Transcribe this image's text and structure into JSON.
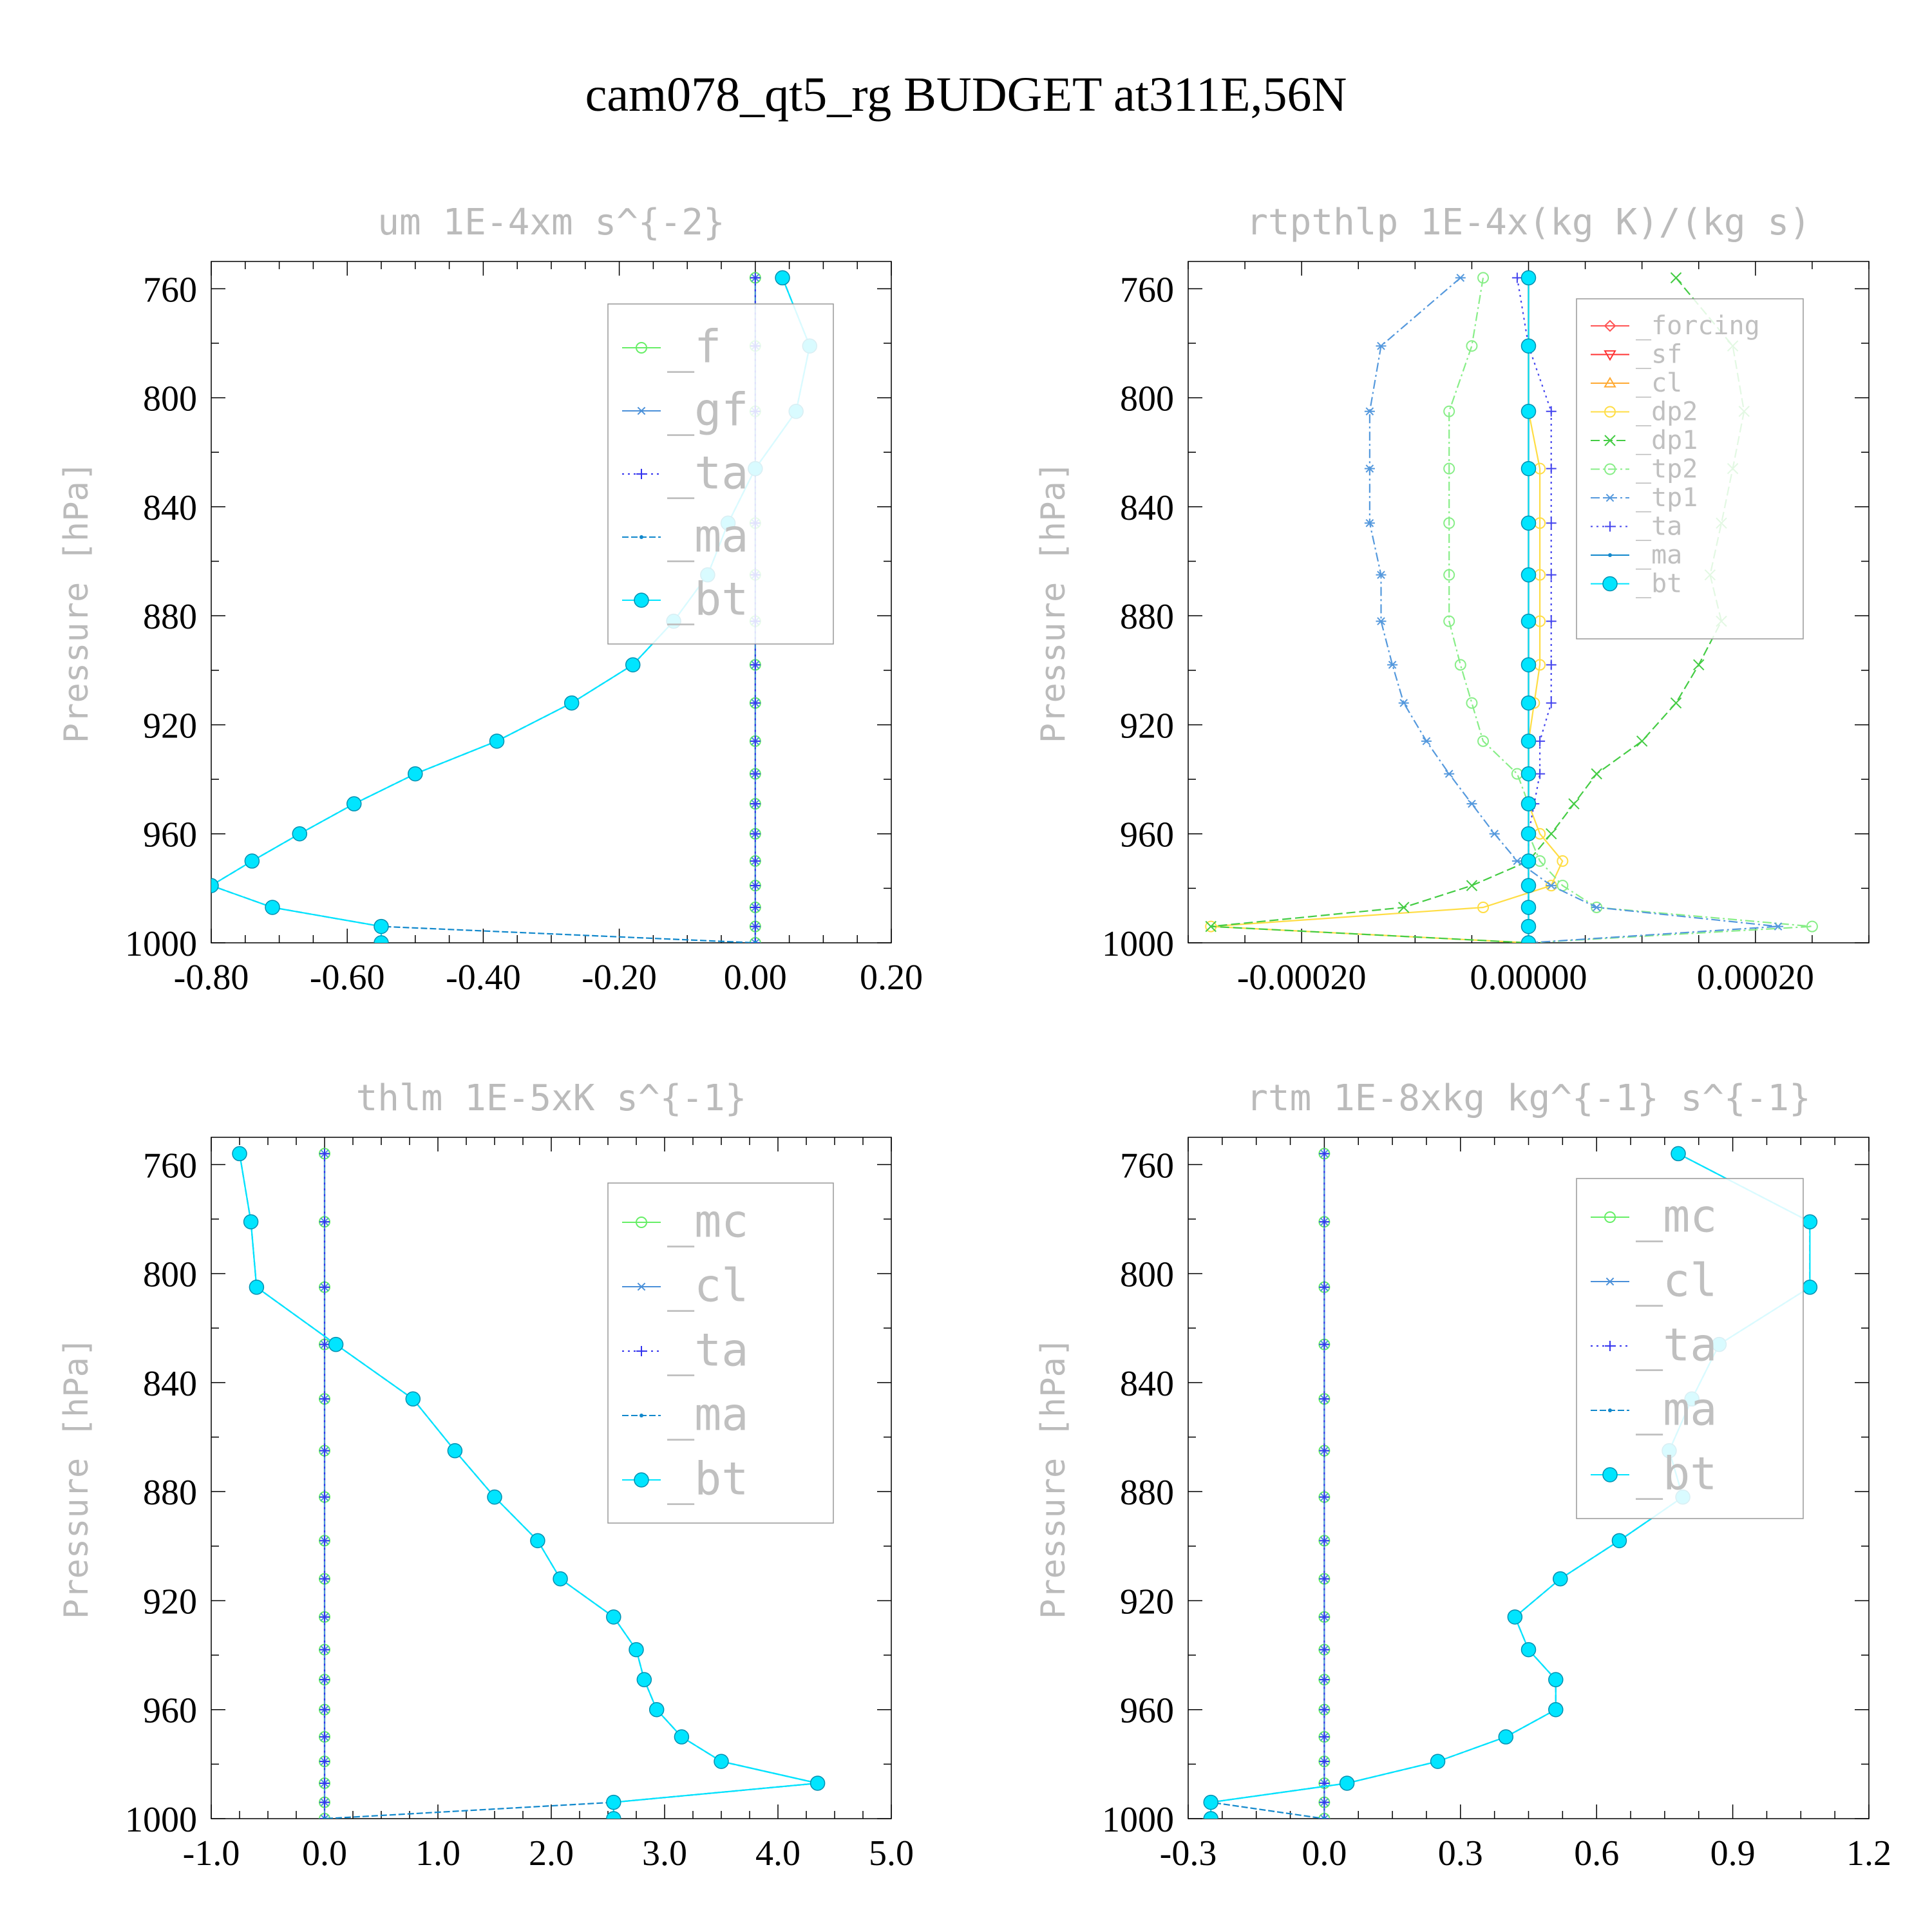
{
  "title": "cam078_qt5_rg  BUDGET at311E,56N",
  "chart_data": [
    {
      "type": "line",
      "title": "um  1E-4xm s^{-2}",
      "ylabel": "Pressure [hPa]",
      "xlabel": "",
      "xlim": [
        -0.8,
        0.2
      ],
      "ylim": [
        1000,
        750
      ],
      "xticks": [
        "-0.80",
        "-0.60",
        "-0.40",
        "-0.20",
        "0.00",
        "0.20"
      ],
      "yticks": [
        "760",
        "800",
        "840",
        "880",
        "920",
        "960",
        "1000"
      ],
      "grid": false,
      "legend_position": "top-right",
      "pressure": [
        756,
        781,
        805,
        826,
        846,
        865,
        882,
        898,
        912,
        926,
        938,
        949,
        960,
        970,
        979,
        987,
        994,
        1000
      ],
      "series": [
        {
          "name": "_f",
          "color": "#66ee66",
          "marker": "circle-open",
          "dash": "",
          "values": [
            0,
            0,
            0,
            0,
            0,
            0,
            0,
            0,
            0,
            0,
            0,
            0,
            0,
            0,
            0,
            0,
            0,
            0
          ]
        },
        {
          "name": "_gf",
          "color": "#4a90d9",
          "marker": "star",
          "dash": "",
          "values": [
            0,
            0,
            0,
            0,
            0,
            0,
            0,
            0,
            0,
            0,
            0,
            0,
            0,
            0,
            0,
            0,
            0,
            0
          ]
        },
        {
          "name": "_ta",
          "color": "#3333ee",
          "marker": "plus",
          "dash": "3,6",
          "values": [
            0,
            0,
            0,
            0,
            0,
            0,
            0,
            0,
            0,
            0,
            0,
            0,
            0,
            0,
            0,
            0,
            0,
            0
          ]
        },
        {
          "name": "_ma",
          "color": "#1188cc",
          "marker": "dot",
          "dash": "10,4",
          "values": [
            0.04,
            0.08,
            0.06,
            0.0,
            -0.04,
            -0.07,
            -0.12,
            -0.18,
            -0.27,
            -0.38,
            -0.5,
            -0.59,
            -0.67,
            -0.74,
            -0.8,
            -0.71,
            -0.55,
            0
          ]
        },
        {
          "name": "_bt",
          "color": "#00e5ff",
          "marker": "filled",
          "dash": "",
          "values": [
            0.04,
            0.08,
            0.06,
            0.0,
            -0.04,
            -0.07,
            -0.12,
            -0.18,
            -0.27,
            -0.38,
            -0.5,
            -0.59,
            -0.67,
            -0.74,
            -0.8,
            -0.71,
            -0.55,
            -0.55
          ]
        }
      ]
    },
    {
      "type": "line",
      "title": "rtpthlp  1E-4x(kg K)/(kg s)",
      "ylabel": "Pressure [hPa]",
      "xlabel": "",
      "xlim": [
        -0.0003,
        0.0003
      ],
      "ylim": [
        1000,
        750
      ],
      "xticks": [
        "-0.00020",
        "0.00000",
        "0.00020"
      ],
      "yticks": [
        "760",
        "800",
        "840",
        "880",
        "920",
        "960",
        "1000"
      ],
      "grid": false,
      "legend_position": "top-right",
      "pressure": [
        756,
        781,
        805,
        826,
        846,
        865,
        882,
        898,
        912,
        926,
        938,
        949,
        960,
        970,
        979,
        987,
        994,
        1000
      ],
      "series": [
        {
          "name": "_forcing",
          "color": "#ff5555",
          "marker": "diamond",
          "dash": "",
          "values": [
            0,
            0,
            0,
            0,
            0,
            0,
            0,
            0,
            0,
            0,
            0,
            0,
            0,
            0,
            0,
            0,
            0,
            0
          ]
        },
        {
          "name": "_sf",
          "color": "#ff3333",
          "marker": "triangle-down",
          "dash": "",
          "values": [
            0,
            0,
            0,
            0,
            0,
            0,
            0,
            0,
            0,
            0,
            0,
            0,
            0,
            0,
            0,
            0,
            0,
            0
          ]
        },
        {
          "name": "_cl",
          "color": "#ffaa33",
          "marker": "triangle-up",
          "dash": "",
          "values": [
            0,
            0,
            0,
            0,
            0,
            0,
            0,
            0,
            0,
            0,
            0,
            0,
            0,
            0,
            0,
            0,
            0,
            0
          ]
        },
        {
          "name": "_dp2",
          "color": "#ffdd44",
          "marker": "circle-open",
          "dash": "",
          "values": [
            0,
            0,
            0,
            1e-05,
            1e-05,
            1e-05,
            1e-05,
            1e-05,
            5e-06,
            0,
            0,
            0,
            1e-05,
            3e-05,
            2e-05,
            -4e-05,
            -0.00028,
            0
          ]
        },
        {
          "name": "_dp1",
          "color": "#44cc44",
          "marker": "x",
          "dash": "14,6",
          "values": [
            0.00013,
            0.00018,
            0.00019,
            0.00018,
            0.00017,
            0.00016,
            0.00017,
            0.00015,
            0.00013,
            0.0001,
            6e-05,
            4e-05,
            2e-05,
            0,
            -5e-05,
            -0.00011,
            -0.00028,
            0
          ]
        },
        {
          "name": "_tp2",
          "color": "#88ee88",
          "marker": "circle-open",
          "dash": "14,5,3,5",
          "values": [
            -4e-05,
            -5e-05,
            -7e-05,
            -7e-05,
            -7e-05,
            -7e-05,
            -7e-05,
            -6e-05,
            -5e-05,
            -4e-05,
            -1e-05,
            0,
            0,
            1e-05,
            3e-05,
            6e-05,
            0.00025,
            0
          ]
        },
        {
          "name": "_tp1",
          "color": "#5599dd",
          "marker": "star",
          "dash": "14,5,3,5",
          "values": [
            -6e-05,
            -0.00013,
            -0.00014,
            -0.00014,
            -0.00014,
            -0.00013,
            -0.00013,
            -0.00012,
            -0.00011,
            -9e-05,
            -7e-05,
            -5e-05,
            -3e-05,
            -1e-05,
            2e-05,
            6e-05,
            0.00022,
            0
          ]
        },
        {
          "name": "_ta",
          "color": "#4444ee",
          "marker": "plus",
          "dash": "3,6",
          "values": [
            -1e-05,
            0,
            2e-05,
            2e-05,
            2e-05,
            2e-05,
            2e-05,
            2e-05,
            2e-05,
            1e-05,
            1e-05,
            5e-06,
            0,
            0,
            0,
            0,
            0,
            0
          ]
        },
        {
          "name": "_ma",
          "color": "#1188cc",
          "marker": "dot",
          "dash": "",
          "values": [
            0,
            0,
            0,
            0,
            0,
            0,
            0,
            0,
            0,
            0,
            0,
            0,
            0,
            0,
            0,
            0,
            0,
            0
          ]
        },
        {
          "name": "_bt",
          "color": "#00e5ff",
          "marker": "filled",
          "dash": "",
          "values": [
            0,
            0,
            0,
            0,
            0,
            0,
            0,
            0,
            0,
            0,
            0,
            0,
            0,
            0,
            0,
            0,
            0,
            0
          ]
        }
      ]
    },
    {
      "type": "line",
      "title": "thlm  1E-5xK s^{-1}",
      "ylabel": "Pressure [hPa]",
      "xlabel": "",
      "xlim": [
        -1.0,
        5.0
      ],
      "ylim": [
        1000,
        750
      ],
      "xticks": [
        "-1.0",
        "0.0",
        "1.0",
        "2.0",
        "3.0",
        "4.0",
        "5.0"
      ],
      "yticks": [
        "760",
        "800",
        "840",
        "880",
        "920",
        "960",
        "1000"
      ],
      "grid": false,
      "legend_position": "top-right",
      "pressure": [
        756,
        781,
        805,
        826,
        846,
        865,
        882,
        898,
        912,
        926,
        938,
        949,
        960,
        970,
        979,
        987,
        994,
        1000
      ],
      "series": [
        {
          "name": "_mc",
          "color": "#66ee66",
          "marker": "circle-open",
          "dash": "",
          "values": [
            0,
            0,
            0,
            0,
            0,
            0,
            0,
            0,
            0,
            0,
            0,
            0,
            0,
            0,
            0,
            0,
            0,
            0
          ]
        },
        {
          "name": "_cl",
          "color": "#4a90d9",
          "marker": "star",
          "dash": "",
          "values": [
            0,
            0,
            0,
            0,
            0,
            0,
            0,
            0,
            0,
            0,
            0,
            0,
            0,
            0,
            0,
            0,
            0,
            0
          ]
        },
        {
          "name": "_ta",
          "color": "#3333ee",
          "marker": "plus",
          "dash": "3,6",
          "values": [
            0,
            0,
            0,
            0,
            0,
            0,
            0,
            0,
            0,
            0,
            0,
            0,
            0,
            0,
            0,
            0,
            0,
            0
          ]
        },
        {
          "name": "_ma",
          "color": "#1188cc",
          "marker": "dot",
          "dash": "10,4",
          "values": [
            -0.75,
            -0.65,
            -0.6,
            0.1,
            0.78,
            1.15,
            1.5,
            1.88,
            2.08,
            2.55,
            2.75,
            2.82,
            2.93,
            3.15,
            3.5,
            4.35,
            2.55,
            0
          ]
        },
        {
          "name": "_bt",
          "color": "#00e5ff",
          "marker": "filled",
          "dash": "",
          "values": [
            -0.75,
            -0.65,
            -0.6,
            0.1,
            0.78,
            1.15,
            1.5,
            1.88,
            2.08,
            2.55,
            2.75,
            2.82,
            2.93,
            3.15,
            3.5,
            4.35,
            2.55,
            2.55
          ]
        }
      ]
    },
    {
      "type": "line",
      "title": "rtm  1E-8xkg kg^{-1} s^{-1}",
      "ylabel": "Pressure [hPa]",
      "xlabel": "",
      "xlim": [
        -0.3,
        1.2
      ],
      "ylim": [
        1000,
        750
      ],
      "xticks": [
        "-0.3",
        "0.0",
        "0.3",
        "0.6",
        "0.9",
        "1.2"
      ],
      "yticks": [
        "760",
        "800",
        "840",
        "880",
        "920",
        "960",
        "1000"
      ],
      "grid": false,
      "legend_position": "top-right",
      "pressure": [
        756,
        781,
        805,
        826,
        846,
        865,
        882,
        898,
        912,
        926,
        938,
        949,
        960,
        970,
        979,
        987,
        994,
        1000
      ],
      "series": [
        {
          "name": "_mc",
          "color": "#66ee66",
          "marker": "circle-open",
          "dash": "",
          "values": [
            0,
            0,
            0,
            0,
            0,
            0,
            0,
            0,
            0,
            0,
            0,
            0,
            0,
            0,
            0,
            0,
            0,
            0
          ]
        },
        {
          "name": "_cl",
          "color": "#4a90d9",
          "marker": "star",
          "dash": "",
          "values": [
            0,
            0,
            0,
            0,
            0,
            0,
            0,
            0,
            0,
            0,
            0,
            0,
            0,
            0,
            0,
            0,
            0,
            0
          ]
        },
        {
          "name": "_ta",
          "color": "#3333ee",
          "marker": "plus",
          "dash": "3,6",
          "values": [
            0,
            0,
            0,
            0,
            0,
            0,
            0,
            0,
            0,
            0,
            0,
            0,
            0,
            0,
            0,
            0,
            0,
            0
          ]
        },
        {
          "name": "_ma",
          "color": "#1188cc",
          "marker": "dot",
          "dash": "10,4",
          "values": [
            0.78,
            1.07,
            1.07,
            0.87,
            0.81,
            0.76,
            0.79,
            0.65,
            0.52,
            0.42,
            0.45,
            0.51,
            0.51,
            0.4,
            0.25,
            0.05,
            -0.25,
            0
          ]
        },
        {
          "name": "_bt",
          "color": "#00e5ff",
          "marker": "filled",
          "dash": "",
          "values": [
            0.78,
            1.07,
            1.07,
            0.87,
            0.81,
            0.76,
            0.79,
            0.65,
            0.52,
            0.42,
            0.45,
            0.51,
            0.51,
            0.4,
            0.25,
            0.05,
            -0.25,
            -0.25
          ]
        }
      ]
    }
  ]
}
